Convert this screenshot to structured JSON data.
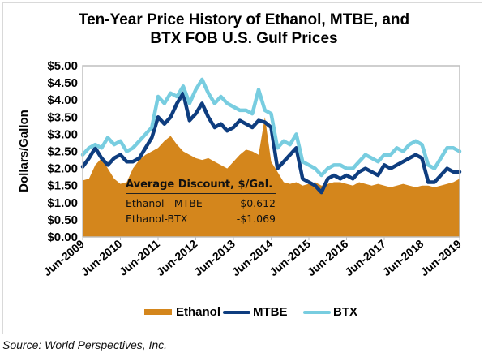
{
  "colors": {
    "ethanol": "#D4861C",
    "mtbe": "#0E3D7F",
    "btx": "#78CDE0",
    "axis": "#bfbfbf"
  },
  "chart_data": {
    "type": "area",
    "title": "Ten-Year Price History of Ethanol, MTBE, and BTX FOB U.S. Gulf Prices",
    "title_lines": [
      "Ten-Year Price History of Ethanol, MTBE, and",
      "BTX FOB U.S. Gulf Prices"
    ],
    "xlabel": "",
    "ylabel": "Dollars/Gallon",
    "ylim": [
      0,
      5
    ],
    "y_ticks": [
      "$0.00",
      "$0.50",
      "$1.00",
      "$1.50",
      "$2.00",
      "$2.50",
      "$3.00",
      "$3.50",
      "$4.00",
      "$4.50",
      "$5.00"
    ],
    "x_ticks": [
      "Jun-2009",
      "Jun-2010",
      "Jun-2011",
      "Jun-2012",
      "Jun-2013",
      "Jun-2014",
      "Jun-2015",
      "Jun-2016",
      "Jun-2017",
      "Jun-2018",
      "Jun-2019"
    ],
    "x_range_months": [
      0,
      120
    ],
    "x_step_months": 2,
    "grid": false,
    "legend_position": "bottom",
    "series": [
      {
        "name": "Ethanol",
        "style": "area",
        "values": [
          1.65,
          1.7,
          2.1,
          2.3,
          2.0,
          1.7,
          1.55,
          1.6,
          2.0,
          2.25,
          2.4,
          2.5,
          2.6,
          2.8,
          2.95,
          2.7,
          2.5,
          2.4,
          2.3,
          2.25,
          2.3,
          2.2,
          2.1,
          2.0,
          2.2,
          2.4,
          2.55,
          2.5,
          2.4,
          3.5,
          2.2,
          1.9,
          1.6,
          1.55,
          1.6,
          1.5,
          1.55,
          1.6,
          1.5,
          1.55,
          1.6,
          1.6,
          1.55,
          1.5,
          1.6,
          1.55,
          1.5,
          1.55,
          1.5,
          1.45,
          1.5,
          1.55,
          1.5,
          1.45,
          1.5,
          1.5,
          1.45,
          1.5,
          1.55,
          1.6,
          1.7
        ]
      },
      {
        "name": "MTBE",
        "style": "line",
        "values": [
          2.05,
          2.3,
          2.6,
          2.3,
          2.1,
          2.3,
          2.4,
          2.2,
          2.2,
          2.3,
          2.6,
          2.9,
          3.5,
          3.3,
          3.5,
          3.9,
          4.2,
          3.4,
          3.6,
          3.9,
          3.5,
          3.2,
          3.3,
          3.1,
          3.2,
          3.4,
          3.3,
          3.2,
          3.4,
          3.35,
          3.2,
          2.0,
          2.2,
          2.4,
          2.6,
          1.7,
          1.6,
          1.5,
          1.3,
          1.7,
          1.8,
          1.7,
          1.8,
          1.7,
          1.9,
          2.0,
          1.9,
          1.8,
          2.1,
          2.0,
          2.1,
          2.2,
          2.3,
          2.4,
          2.3,
          1.6,
          1.6,
          1.8,
          2.0,
          1.9,
          1.9
        ]
      },
      {
        "name": "BTX",
        "style": "line",
        "values": [
          2.4,
          2.6,
          2.7,
          2.6,
          2.9,
          2.7,
          2.8,
          2.5,
          2.6,
          2.8,
          3.0,
          3.2,
          4.1,
          3.9,
          4.2,
          4.1,
          4.4,
          3.9,
          4.3,
          4.6,
          4.2,
          3.9,
          4.1,
          3.9,
          3.8,
          3.7,
          3.7,
          3.6,
          4.3,
          3.7,
          3.6,
          2.6,
          2.8,
          2.7,
          3.0,
          2.2,
          2.1,
          2.0,
          1.8,
          2.0,
          2.1,
          2.1,
          2.0,
          2.0,
          2.2,
          2.4,
          2.3,
          2.2,
          2.4,
          2.4,
          2.6,
          2.5,
          2.7,
          2.8,
          2.7,
          2.1,
          2.0,
          2.3,
          2.6,
          2.6,
          2.5
        ]
      }
    ],
    "annotation": {
      "header": "Average Discount, $/Gal.",
      "rows": [
        {
          "label": "Ethanol - MTBE",
          "value": "-$0.612"
        },
        {
          "label": "Ethanol-BTX",
          "value": "-$1.069"
        }
      ]
    }
  },
  "legend": {
    "items": [
      {
        "label": "Ethanol"
      },
      {
        "label": "MTBE"
      },
      {
        "label": "BTX"
      }
    ]
  },
  "source": "Source: World Perspectives, Inc."
}
